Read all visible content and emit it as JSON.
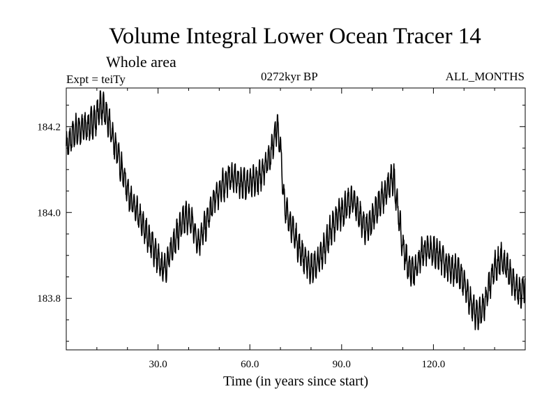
{
  "chart_data": {
    "type": "line",
    "title": "Volume Integral Lower Ocean Tracer 14",
    "subtitle": "Whole area",
    "annotations": {
      "expt": "Expt = teiTy",
      "period": "0272kyr BP",
      "months": "ALL_MONTHS"
    },
    "xlabel": "Time (in years since start)",
    "ylabel": "",
    "xlim": [
      0,
      150
    ],
    "ylim": [
      183.68,
      184.29
    ],
    "x_ticks": [
      30,
      60,
      90,
      120
    ],
    "x_tick_labels": [
      "30.0",
      "60.0",
      "90.0",
      "120.0"
    ],
    "y_ticks": [
      183.8,
      184.0,
      184.2
    ],
    "y_tick_labels": [
      "183.8",
      "184.0",
      "184.2"
    ],
    "seasonal_cycle_amplitude": 0.03,
    "series": [
      {
        "name": "Tracer 14",
        "color": "#000000",
        "trend_x": [
          0,
          3,
          7,
          10,
          11,
          13,
          15,
          17,
          19,
          21,
          23,
          25,
          27,
          29,
          31,
          33,
          35,
          37,
          39,
          41,
          43,
          45,
          47,
          49,
          51,
          53,
          55,
          57,
          59,
          61,
          63,
          65,
          67,
          68,
          69,
          70,
          71,
          72,
          74,
          76,
          78,
          80,
          82,
          84,
          86,
          88,
          90,
          92,
          94,
          96,
          98,
          100,
          102,
          104,
          106,
          107,
          108,
          109,
          110,
          112,
          114,
          116,
          118,
          120,
          122,
          124,
          126,
          128,
          130,
          132,
          134,
          136,
          138,
          140,
          142,
          144,
          146,
          148,
          150
        ],
        "trend_y": [
          184.15,
          184.19,
          184.2,
          184.22,
          184.25,
          184.23,
          184.18,
          184.13,
          184.08,
          184.03,
          184.0,
          183.97,
          183.94,
          183.91,
          183.87,
          183.88,
          183.93,
          183.96,
          183.99,
          183.98,
          183.93,
          183.96,
          184.0,
          184.04,
          184.06,
          184.08,
          184.08,
          184.07,
          184.07,
          184.07,
          184.08,
          184.11,
          184.14,
          184.18,
          184.2,
          184.15,
          184.04,
          184.0,
          183.96,
          183.92,
          183.89,
          183.87,
          183.88,
          183.91,
          183.95,
          183.98,
          184.0,
          184.02,
          184.03,
          183.99,
          183.96,
          183.98,
          184.02,
          184.04,
          184.07,
          184.08,
          184.03,
          183.97,
          183.92,
          183.87,
          183.86,
          183.9,
          183.92,
          183.91,
          183.9,
          183.88,
          183.87,
          183.86,
          183.84,
          183.79,
          183.76,
          183.77,
          183.82,
          183.87,
          183.89,
          183.87,
          183.84,
          183.81,
          183.83
        ]
      }
    ]
  }
}
